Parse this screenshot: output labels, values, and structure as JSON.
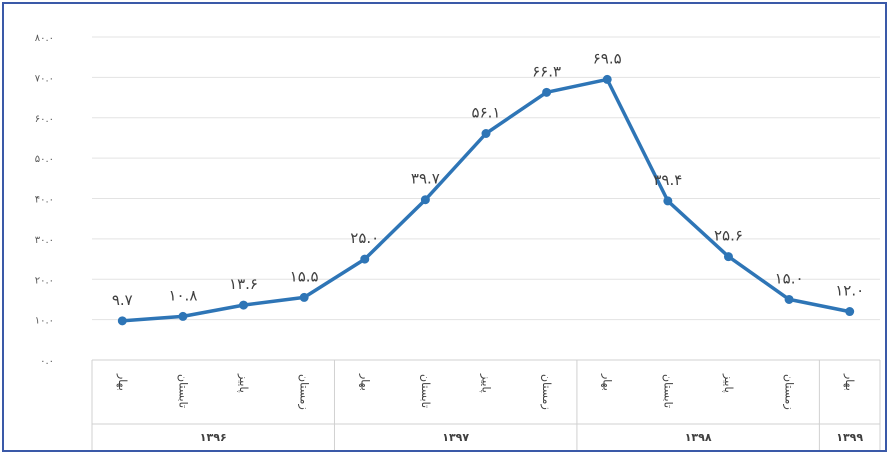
{
  "chart_data": {
    "type": "line",
    "title": "",
    "xlabel": "",
    "ylabel": "",
    "ylim": [
      0,
      80
    ],
    "grid": true,
    "legend": "none",
    "line_color": "#2e75b6",
    "y_tick_labels": [
      "۰.۰",
      "۱۰.۰",
      "۲۰.۰",
      "۳۰.۰",
      "۴۰.۰",
      "۵۰.۰",
      "۶۰.۰",
      "۷۰.۰",
      "۸۰.۰"
    ],
    "y_tick_values": [
      0,
      10,
      20,
      30,
      40,
      50,
      60,
      70,
      80
    ],
    "categories": [
      "بهار",
      "تابستان",
      "پاییز",
      "زمستان",
      "بهار",
      "تابستان",
      "پاییز",
      "زمستان",
      "بهار",
      "تابستان",
      "پاییز",
      "زمستان",
      "بهار"
    ],
    "year_groups": [
      {
        "label": "۱۳۹۶",
        "count": 4
      },
      {
        "label": "۱۳۹۷",
        "count": 4
      },
      {
        "label": "۱۳۹۸",
        "count": 4
      },
      {
        "label": "۱۳۹۹",
        "count": 1
      }
    ],
    "values": [
      9.7,
      10.8,
      13.6,
      15.5,
      25.0,
      39.7,
      56.1,
      66.3,
      69.5,
      39.4,
      25.6,
      15.0,
      12.0
    ],
    "data_labels": [
      "۹.۷",
      "۱۰.۸",
      "۱۳.۶",
      "۱۵.۵",
      "۲۵.۰",
      "۳۹.۷",
      "۵۶.۱",
      "۶۶.۳",
      "۶۹.۵",
      "۳۹.۴",
      "۲۵.۶",
      "۱۵.۰",
      "۱۲.۰"
    ]
  }
}
